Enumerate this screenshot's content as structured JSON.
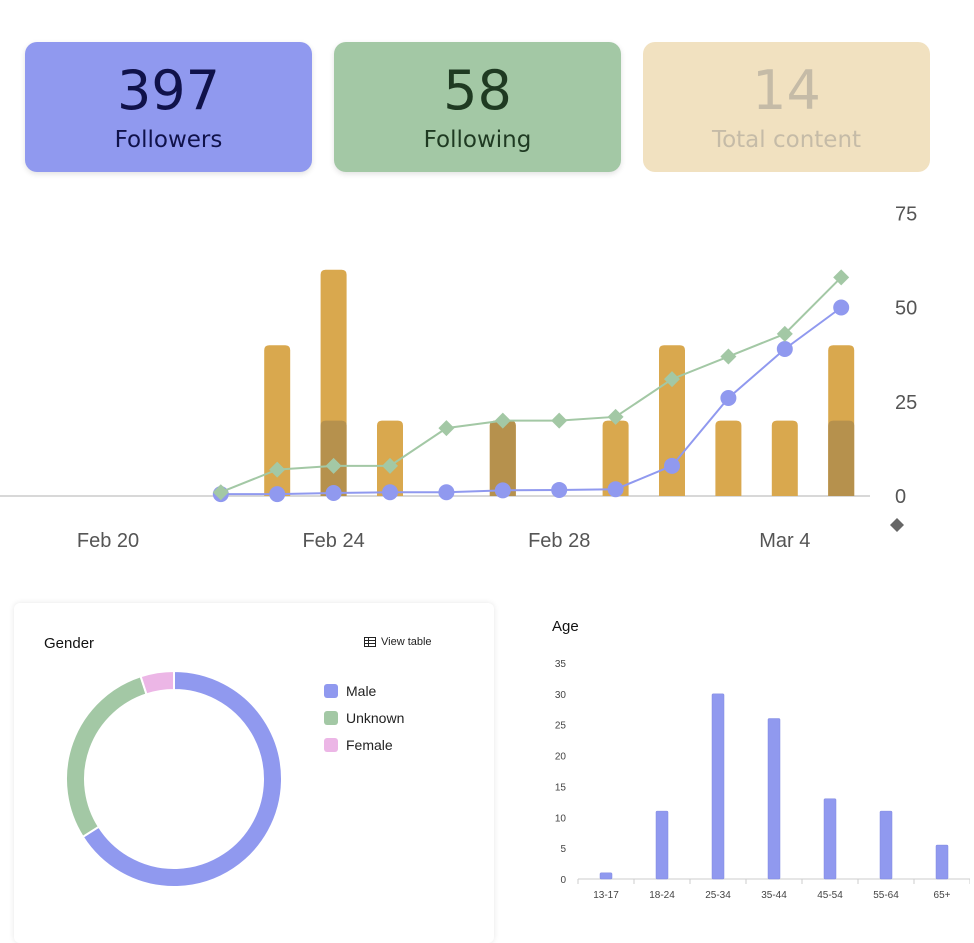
{
  "stats": {
    "followers": {
      "value": "397",
      "label": "Followers"
    },
    "following": {
      "value": "58",
      "label": "Following"
    },
    "content": {
      "value": "14",
      "label": "Total content"
    }
  },
  "colors": {
    "followers": "#9099ef",
    "following": "#a3c8a5",
    "content": "#f1e1c0",
    "bars": "#d9a84e",
    "bars_dark": "#b6914d",
    "female": "#ecb6e6"
  },
  "chart_data": [
    {
      "type": "bar+line",
      "x_ticks": [
        "Feb 20",
        "Feb 24",
        "Feb 28",
        "Mar 4"
      ],
      "y_ticks": [
        "75",
        "50",
        "25",
        "0"
      ],
      "ylim": [
        0,
        75
      ],
      "dates": [
        "Feb 20",
        "Feb 21",
        "Feb 22",
        "Feb 23",
        "Feb 24",
        "Feb 25",
        "Feb 26",
        "Feb 27",
        "Feb 28",
        "Mar 1",
        "Mar 2",
        "Mar 3",
        "Mar 4",
        "Mar 5"
      ],
      "bars": [
        null,
        null,
        null,
        40,
        60,
        20,
        null,
        20,
        null,
        20,
        40,
        20,
        20,
        40
      ],
      "bars_overlay": [
        null,
        null,
        null,
        null,
        20,
        null,
        null,
        20,
        null,
        null,
        null,
        null,
        null,
        20
      ],
      "series": [
        {
          "name": "Followers",
          "values": [
            null,
            null,
            0.5,
            0.5,
            0.8,
            1,
            1,
            1.5,
            1.6,
            1.8,
            8,
            26,
            39,
            50
          ]
        },
        {
          "name": "Following",
          "values": [
            null,
            null,
            1,
            7,
            8,
            8,
            18,
            20,
            20,
            21,
            31,
            37,
            43,
            58
          ]
        }
      ]
    },
    {
      "type": "pie",
      "title": "Gender",
      "labels": [
        "Male",
        "Unknown",
        "Female"
      ],
      "values": [
        66,
        29,
        5
      ],
      "view_table": "View table"
    },
    {
      "type": "bar",
      "title": "Age",
      "categories": [
        "13-17",
        "18-24",
        "25-34",
        "35-44",
        "45-54",
        "55-64",
        "65+"
      ],
      "values": [
        1,
        11,
        30,
        26,
        13,
        11,
        5.5
      ],
      "y_ticks": [
        "35",
        "30",
        "25",
        "20",
        "15",
        "10",
        "5",
        "0"
      ],
      "ylim": [
        0,
        35
      ]
    }
  ]
}
